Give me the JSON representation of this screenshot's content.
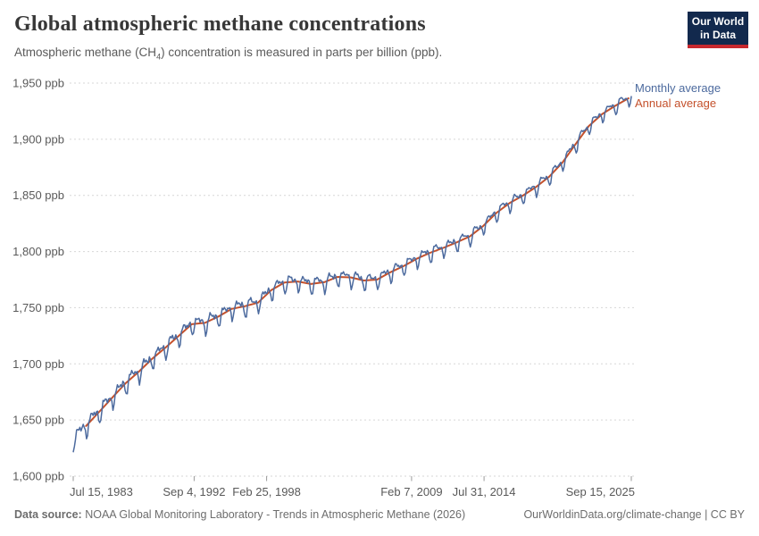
{
  "header": {
    "title": "Global atmospheric methane concentrations",
    "subtitle_prefix": "Atmospheric methane (CH",
    "subtitle_sub": "4",
    "subtitle_suffix": ") concentration is measured in parts per billion (ppb)."
  },
  "logo": {
    "line1": "Our World",
    "line2": "in Data"
  },
  "legend": {
    "monthly_label": "Monthly average",
    "annual_label": "Annual average"
  },
  "footer": {
    "datasource_label": "Data source:",
    "datasource_text": "NOAA Global Monitoring Laboratory - Trends in Atmospheric Methane (2026)",
    "link_text": "OurWorldinData.org/climate-change | CC BY"
  },
  "colors": {
    "monthly_line": "#4c6a9e",
    "annual_line": "#c4512c",
    "gridline": "#d7d7d7",
    "tick": "#9a9a9a",
    "axis_text": "#595959",
    "title": "#373737",
    "logo_bg": "#12294d",
    "logo_bar": "#c7282e"
  },
  "chart_data": {
    "type": "line",
    "title": "Global atmospheric methane concentrations",
    "subtitle": "Atmospheric methane (CH4) concentration is measured in parts per billion (ppb).",
    "unit": "ppb",
    "grid": true,
    "legend_position": "right-of-line-ends",
    "ylim": [
      1600,
      1950
    ],
    "xlim_decimal_years": [
      1983.538,
      2025.708
    ],
    "y_ticks": [
      {
        "value": 1600,
        "label": "1,600 ppb"
      },
      {
        "value": 1650,
        "label": "1,650 ppb"
      },
      {
        "value": 1700,
        "label": "1,700 ppb"
      },
      {
        "value": 1750,
        "label": "1,750 ppb"
      },
      {
        "value": 1800,
        "label": "1,800 ppb"
      },
      {
        "value": 1850,
        "label": "1,850 ppb"
      },
      {
        "value": 1900,
        "label": "1,900 ppb"
      },
      {
        "value": 1950,
        "label": "1,950 ppb"
      }
    ],
    "x_ticks": [
      {
        "decimal_year": 1983.538,
        "label": "Jul 15, 1983",
        "align": "start"
      },
      {
        "decimal_year": 1992.675,
        "label": "Sep 4, 1992",
        "align": "middle"
      },
      {
        "decimal_year": 1998.151,
        "label": "Feb 25, 1998",
        "align": "middle"
      },
      {
        "decimal_year": 2009.104,
        "label": "Feb 7, 2009",
        "align": "middle"
      },
      {
        "decimal_year": 2014.581,
        "label": "Jul 31, 2014",
        "align": "middle"
      },
      {
        "decimal_year": 2025.708,
        "label": "Sep 15, 2025",
        "align": "end"
      }
    ],
    "series": [
      {
        "name": "Annual average",
        "kind": "annual",
        "points_year_value": [
          [
            1984,
            1644.6
          ],
          [
            1985,
            1657.3
          ],
          [
            1986,
            1670.1
          ],
          [
            1987,
            1682.7
          ],
          [
            1988,
            1693.1
          ],
          [
            1989,
            1704.5
          ],
          [
            1990,
            1714.4
          ],
          [
            1991,
            1724.8
          ],
          [
            1992,
            1735.3
          ],
          [
            1993,
            1736.5
          ],
          [
            1994,
            1742.1
          ],
          [
            1995,
            1748.9
          ],
          [
            1996,
            1751.3
          ],
          [
            1997,
            1754.5
          ],
          [
            1998,
            1765.6
          ],
          [
            1999,
            1772.4
          ],
          [
            2000,
            1773.3
          ],
          [
            2001,
            1771.1
          ],
          [
            2002,
            1772.7
          ],
          [
            2003,
            1777.4
          ],
          [
            2004,
            1777.0
          ],
          [
            2005,
            1774.2
          ],
          [
            2006,
            1775.0
          ],
          [
            2007,
            1781.5
          ],
          [
            2008,
            1787.0
          ],
          [
            2009,
            1793.6
          ],
          [
            2010,
            1798.9
          ],
          [
            2011,
            1803.2
          ],
          [
            2012,
            1808.1
          ],
          [
            2013,
            1813.4
          ],
          [
            2014,
            1822.6
          ],
          [
            2015,
            1834.3
          ],
          [
            2016,
            1843.1
          ],
          [
            2017,
            1849.7
          ],
          [
            2018,
            1857.4
          ],
          [
            2019,
            1866.6
          ],
          [
            2020,
            1879.1
          ],
          [
            2021,
            1895.7
          ],
          [
            2022,
            1911.8
          ],
          [
            2023,
            1922.4
          ],
          [
            2024,
            1929.8
          ],
          [
            2025,
            1936.5
          ]
        ]
      },
      {
        "name": "Monthly average",
        "kind": "monthly-derived-from-annual",
        "start_decimal_year": 1983.5417,
        "end_decimal_year": 2025.7083,
        "first_month": "Jul 1983",
        "last_month": "Sep 2025",
        "seasonal_offsets_ppb_jan_to_dec": [
          2.5,
          1.5,
          1.0,
          2.0,
          1.0,
          -3.5,
          -8.0,
          -6.5,
          -0.5,
          3.0,
          4.0,
          3.5
        ],
        "seasonal_amplitude_scale": {
          "start": 1.4,
          "end": 1.0
        },
        "noise_amplitude_ppb": {
          "start": 1.8,
          "end": 0.5
        }
      }
    ]
  }
}
